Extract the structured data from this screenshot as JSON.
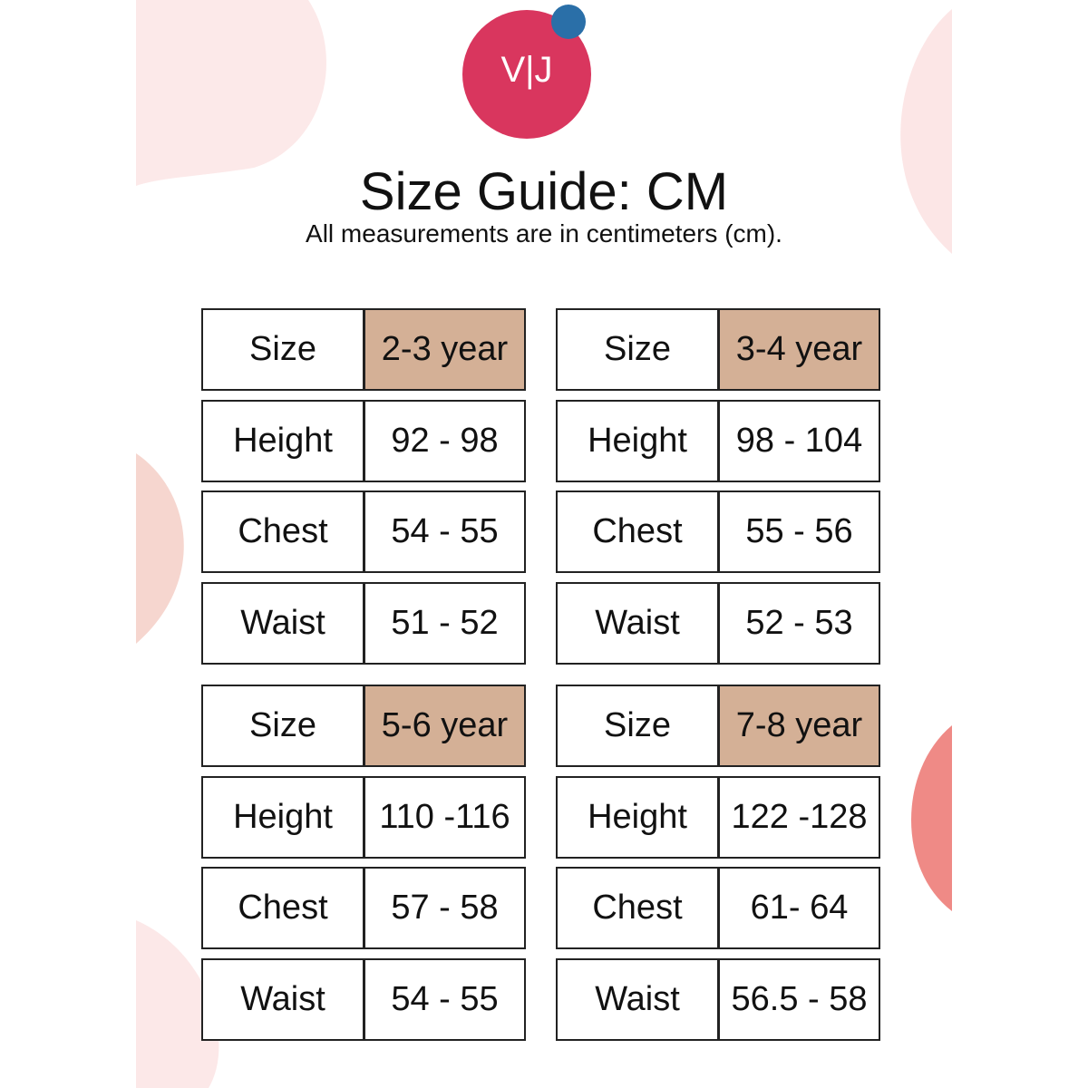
{
  "logo": "V|J",
  "header": {
    "title": "Size Guide: CM",
    "subtitle": "All measurements are in centimeters (cm)."
  },
  "tables": [
    {
      "rows": [
        [
          "Size",
          "2-3 year"
        ],
        [
          "Height",
          "92 - 98"
        ],
        [
          "Chest",
          "54 - 55"
        ],
        [
          "Waist",
          "51 - 52"
        ]
      ]
    },
    {
      "rows": [
        [
          "Size",
          "3-4 year"
        ],
        [
          "Height",
          "98 - 104"
        ],
        [
          "Chest",
          "55 - 56"
        ],
        [
          "Waist",
          "52 - 53"
        ]
      ]
    },
    {
      "rows": [
        [
          "Size",
          "5-6 year"
        ],
        [
          "Height",
          "110 -116"
        ],
        [
          "Chest",
          "57 - 58"
        ],
        [
          "Waist",
          "54 - 55"
        ]
      ]
    },
    {
      "rows": [
        [
          "Size",
          "7-8 year"
        ],
        [
          "Height",
          "122 -128"
        ],
        [
          "Chest",
          "61- 64"
        ],
        [
          "Waist",
          "56.5 - 58"
        ]
      ]
    }
  ]
}
